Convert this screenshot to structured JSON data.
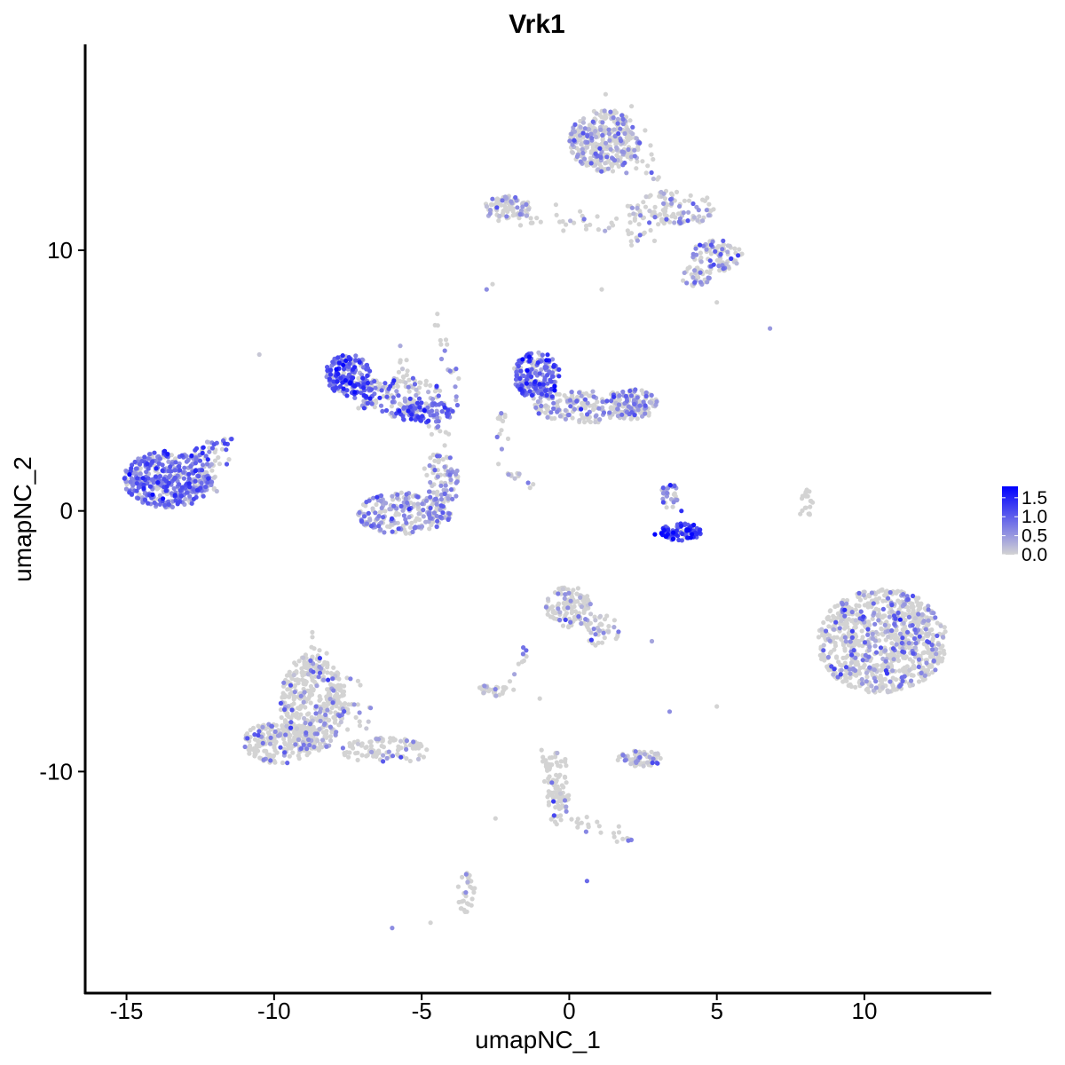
{
  "chart_data": {
    "type": "scatter",
    "title": "Vrk1",
    "xlabel": "umapNC_1",
    "ylabel": "umapNC_2",
    "xlim": [
      -16.4,
      14.3
    ],
    "ylim": [
      -18.5,
      17.9
    ],
    "x_ticks": [
      -15,
      -10,
      -5,
      0,
      5,
      10
    ],
    "x_tick_labels": [
      "-15",
      "-10",
      "-5",
      "0",
      "5",
      "10"
    ],
    "y_ticks": [
      -10,
      0,
      10
    ],
    "y_tick_labels": [
      "-10",
      "0",
      "10"
    ],
    "grid": false,
    "legend": {
      "placement": "right",
      "type": "colorbar",
      "values": [
        1.5,
        1.0,
        0.5,
        0.0
      ],
      "labels": [
        "1.5",
        "1.0",
        "0.5",
        "0.0"
      ],
      "range": [
        0,
        1.8
      ]
    },
    "colors": {
      "low": "#d3d3d3",
      "high": "#0000ff"
    },
    "clusters": [
      {
        "cx": -13.6,
        "cy": 1.2,
        "rx": 1.5,
        "ry": 1.1,
        "n": 420,
        "expr_frac": 0.85,
        "expr_mean": 0.75
      },
      {
        "cx": -12.1,
        "cy": 1.7,
        "rx": 0.6,
        "ry": 1.1,
        "n": 40,
        "expr_frac": 0.7,
        "expr_mean": 0.7
      },
      {
        "cx": -7.5,
        "cy": 5.2,
        "rx": 0.8,
        "ry": 0.8,
        "n": 170,
        "expr_frac": 0.9,
        "expr_mean": 0.95
      },
      {
        "cx": -5.8,
        "cy": 4.4,
        "rx": 1.5,
        "ry": 0.8,
        "n": 100,
        "expr_frac": 0.6,
        "expr_mean": 0.7
      },
      {
        "cx": -4.8,
        "cy": 3.8,
        "rx": 1.0,
        "ry": 0.4,
        "n": 70,
        "expr_frac": 0.8,
        "expr_mean": 1.0
      },
      {
        "cx": -5.6,
        "cy": -0.1,
        "rx": 1.6,
        "ry": 0.8,
        "n": 230,
        "expr_frac": 0.6,
        "expr_mean": 0.55
      },
      {
        "cx": -4.3,
        "cy": 1.2,
        "rx": 0.6,
        "ry": 1.0,
        "n": 70,
        "expr_frac": 0.6,
        "expr_mean": 0.55
      },
      {
        "cx": -1.1,
        "cy": 5.2,
        "rx": 0.8,
        "ry": 0.9,
        "n": 190,
        "expr_frac": 0.8,
        "expr_mean": 0.9
      },
      {
        "cx": 0.7,
        "cy": 4.0,
        "rx": 2.0,
        "ry": 0.6,
        "n": 200,
        "expr_frac": 0.45,
        "expr_mean": 0.55
      },
      {
        "cx": 2.2,
        "cy": 4.1,
        "rx": 0.8,
        "ry": 0.6,
        "n": 100,
        "expr_frac": 0.4,
        "expr_mean": 0.55
      },
      {
        "cx": 3.8,
        "cy": -0.8,
        "rx": 0.7,
        "ry": 0.35,
        "n": 90,
        "expr_frac": 0.9,
        "expr_mean": 1.2
      },
      {
        "cx": 3.4,
        "cy": 0.6,
        "rx": 0.3,
        "ry": 0.5,
        "n": 30,
        "expr_frac": 0.7,
        "expr_mean": 0.7
      },
      {
        "cx": 1.2,
        "cy": 14.2,
        "rx": 1.2,
        "ry": 1.2,
        "n": 320,
        "expr_frac": 0.35,
        "expr_mean": 0.45
      },
      {
        "cx": 3.4,
        "cy": 11.6,
        "rx": 1.6,
        "ry": 0.7,
        "n": 110,
        "expr_frac": 0.4,
        "expr_mean": 0.5
      },
      {
        "cx": 5.0,
        "cy": 9.8,
        "rx": 0.9,
        "ry": 0.6,
        "n": 90,
        "expr_frac": 0.4,
        "expr_mean": 0.5
      },
      {
        "cx": 4.3,
        "cy": 9.0,
        "rx": 0.5,
        "ry": 0.4,
        "n": 40,
        "expr_frac": 0.4,
        "expr_mean": 0.5
      },
      {
        "cx": -2.1,
        "cy": 11.6,
        "rx": 0.8,
        "ry": 0.5,
        "n": 80,
        "expr_frac": 0.25,
        "expr_mean": 0.45
      },
      {
        "cx": 10.6,
        "cy": -5.0,
        "rx": 2.2,
        "ry": 2.0,
        "n": 850,
        "expr_frac": 0.25,
        "expr_mean": 0.55
      },
      {
        "cx": -8.7,
        "cy": -7.4,
        "rx": 1.1,
        "ry": 1.9,
        "n": 400,
        "expr_frac": 0.18,
        "expr_mean": 0.55
      },
      {
        "cx": -9.8,
        "cy": -8.9,
        "rx": 1.3,
        "ry": 0.8,
        "n": 200,
        "expr_frac": 0.18,
        "expr_mean": 0.55
      },
      {
        "cx": -6.2,
        "cy": -9.2,
        "rx": 1.5,
        "ry": 0.5,
        "n": 100,
        "expr_frac": 0.2,
        "expr_mean": 0.5
      },
      {
        "cx": 0.0,
        "cy": -3.7,
        "rx": 0.8,
        "ry": 0.8,
        "n": 120,
        "expr_frac": 0.15,
        "expr_mean": 0.5
      },
      {
        "cx": 1.1,
        "cy": -4.6,
        "rx": 0.6,
        "ry": 0.6,
        "n": 40,
        "expr_frac": 0.15,
        "expr_mean": 0.5
      },
      {
        "cx": 2.4,
        "cy": -9.5,
        "rx": 0.8,
        "ry": 0.3,
        "n": 70,
        "expr_frac": 0.3,
        "expr_mean": 0.5
      },
      {
        "cx": -2.6,
        "cy": -6.9,
        "rx": 0.5,
        "ry": 0.25,
        "n": 30,
        "expr_frac": 0.1,
        "expr_mean": 0.5
      },
      {
        "cx": -3.5,
        "cy": -14.6,
        "rx": 0.3,
        "ry": 0.8,
        "n": 30,
        "expr_frac": 0.15,
        "expr_mean": 0.5
      },
      {
        "cx": -0.4,
        "cy": -10.5,
        "rx": 0.4,
        "ry": 1.6,
        "n": 60,
        "expr_frac": 0.1,
        "expr_mean": 0.5
      },
      {
        "cx": 8.0,
        "cy": 0.3,
        "rx": 0.25,
        "ry": 0.6,
        "n": 20,
        "expr_frac": 0.0,
        "expr_mean": 0.0
      }
    ],
    "bridges": [
      {
        "from": [
          -2.3,
          11.5
        ],
        "to": [
          1.2,
          11.0
        ],
        "n": 30,
        "jitter": 0.25,
        "expr_frac": 0.2,
        "expr_mean": 0.5
      },
      {
        "from": [
          1.2,
          11.0
        ],
        "to": [
          2.9,
          10.6
        ],
        "n": 20,
        "jitter": 0.3,
        "expr_frac": 0.2,
        "expr_mean": 0.5
      },
      {
        "from": [
          -7.0,
          4.6
        ],
        "to": [
          -4.2,
          3.8
        ],
        "n": 60,
        "jitter": 0.3,
        "expr_frac": 0.7,
        "expr_mean": 0.8
      },
      {
        "from": [
          -4.5,
          7.5
        ],
        "to": [
          -3.8,
          4.0
        ],
        "n": 20,
        "jitter": 0.1,
        "expr_frac": 0.6,
        "expr_mean": 0.7
      },
      {
        "from": [
          -5.8,
          6.6
        ],
        "to": [
          -5.3,
          4.2
        ],
        "n": 12,
        "jitter": 0.1,
        "expr_frac": 0.3,
        "expr_mean": 0.5
      },
      {
        "from": [
          -4.5,
          3.2
        ],
        "to": [
          -4.5,
          1.5
        ],
        "n": 15,
        "jitter": 0.2,
        "expr_frac": 0.2,
        "expr_mean": 0.5
      },
      {
        "from": [
          -2.2,
          3.8
        ],
        "to": [
          -2.4,
          2.5
        ],
        "n": 12,
        "jitter": 0.15,
        "expr_frac": 0.2,
        "expr_mean": 0.5
      },
      {
        "from": [
          -2.1,
          1.6
        ],
        "to": [
          -1.1,
          0.7
        ],
        "n": 12,
        "jitter": 0.08,
        "expr_frac": 0.4,
        "expr_mean": 0.5
      },
      {
        "from": [
          -9.0,
          -5.3
        ],
        "to": [
          -6.8,
          -8.3
        ],
        "n": 60,
        "jitter": 0.35,
        "expr_frac": 0.2,
        "expr_mean": 0.5
      },
      {
        "from": [
          -0.9,
          -9.2
        ],
        "to": [
          -0.2,
          -11.6
        ],
        "n": 40,
        "jitter": 0.12,
        "expr_frac": 0.1,
        "expr_mean": 0.5
      },
      {
        "from": [
          0.0,
          -11.8
        ],
        "to": [
          2.4,
          -12.7
        ],
        "n": 25,
        "jitter": 0.12,
        "expr_frac": 0.15,
        "expr_mean": 0.5
      },
      {
        "from": [
          1.4,
          15.3
        ],
        "to": [
          2.9,
          12.4
        ],
        "n": 40,
        "jitter": 0.4,
        "expr_frac": 0.4,
        "expr_mean": 0.5
      },
      {
        "from": [
          -1.4,
          -5.3
        ],
        "to": [
          -2.1,
          -6.7
        ],
        "n": 10,
        "jitter": 0.1,
        "expr_frac": 0.1,
        "expr_mean": 0.5
      },
      {
        "from": [
          -12.7,
          2.2
        ],
        "to": [
          -11.4,
          2.8
        ],
        "n": 20,
        "jitter": 0.15,
        "expr_frac": 0.8,
        "expr_mean": 0.8
      }
    ],
    "singles": [
      {
        "x": -10.5,
        "y": 6.0,
        "v": 0.1
      },
      {
        "x": -2.8,
        "y": 8.5,
        "v": 0.6
      },
      {
        "x": -2.6,
        "y": 8.7,
        "v": 0.0
      },
      {
        "x": 6.8,
        "y": 7.0,
        "v": 0.5
      },
      {
        "x": 5.0,
        "y": 8.0,
        "v": 0.0
      },
      {
        "x": -6.0,
        "y": -16.0,
        "v": 0.6
      },
      {
        "x": -4.7,
        "y": -15.8,
        "v": 0.0
      },
      {
        "x": 0.6,
        "y": -14.2,
        "v": 0.9
      },
      {
        "x": 2.8,
        "y": -5.0,
        "v": 0.4
      },
      {
        "x": 5.0,
        "y": -7.5,
        "v": 0.0
      },
      {
        "x": 3.4,
        "y": -7.7,
        "v": 0.6
      },
      {
        "x": -1.0,
        "y": -7.2,
        "v": 0.0
      },
      {
        "x": 1.1,
        "y": 8.5,
        "v": 0.0
      },
      {
        "x": -2.4,
        "y": 1.8,
        "v": 0.0
      },
      {
        "x": -2.5,
        "y": -11.8,
        "v": 0.0
      },
      {
        "x": 3.8,
        "y": 0.0,
        "v": 1.4
      },
      {
        "x": 2.9,
        "y": -0.9,
        "v": 1.8
      }
    ]
  }
}
